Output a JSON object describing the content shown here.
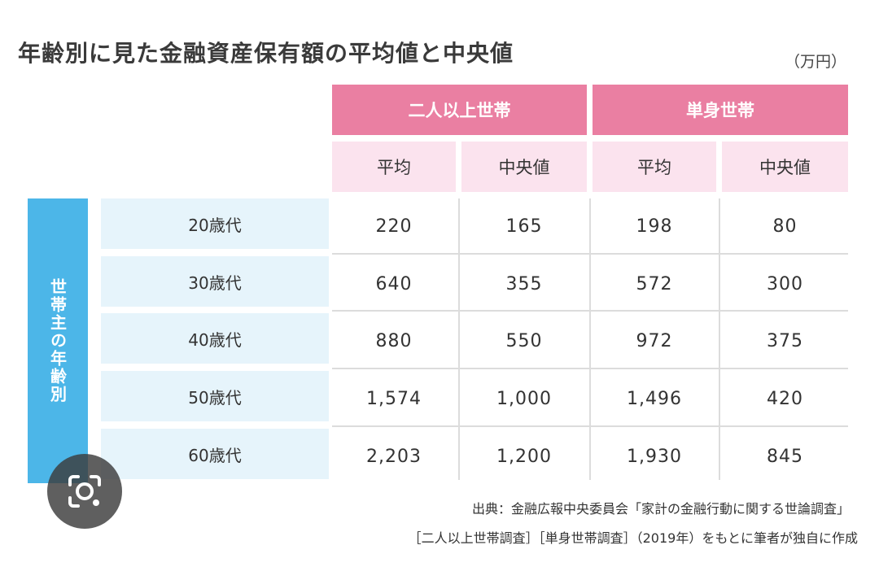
{
  "colors": {
    "group_header": "#ea7fa2",
    "sub_header": "#fbe3ee",
    "row_label_bg": "#e6f4fb",
    "side_label_bg": "#4cb6e8"
  },
  "header": {
    "title": "年齢別に見た金融資産保有額の平均値と中央値",
    "unit": "（万円）"
  },
  "chart_data": {
    "type": "table",
    "side_label": "世帯主の年齢別",
    "groups": [
      {
        "name": "二人以上世帯",
        "columns": [
          "平均",
          "中央値"
        ]
      },
      {
        "name": "単身世帯",
        "columns": [
          "平均",
          "中央値"
        ]
      }
    ],
    "rows": [
      {
        "label": "20歳代",
        "values": [
          "220",
          "165",
          "198",
          "80"
        ]
      },
      {
        "label": "30歳代",
        "values": [
          "640",
          "355",
          "572",
          "300"
        ]
      },
      {
        "label": "40歳代",
        "values": [
          "880",
          "550",
          "972",
          "375"
        ]
      },
      {
        "label": "50歳代",
        "values": [
          "1,574",
          "1,000",
          "1,496",
          "420"
        ]
      },
      {
        "label": "60歳代",
        "values": [
          "2,203",
          "1,200",
          "1,930",
          "845"
        ]
      }
    ]
  },
  "footer": {
    "line1": "出典：金融広報中央委員会「家計の金融行動に関する世論調査」",
    "line2": "［二人以上世帯調査］［単身世帯調査］（2019年）をもとに筆者が独自に作成"
  },
  "overlay": {
    "icon": "lens-icon"
  }
}
